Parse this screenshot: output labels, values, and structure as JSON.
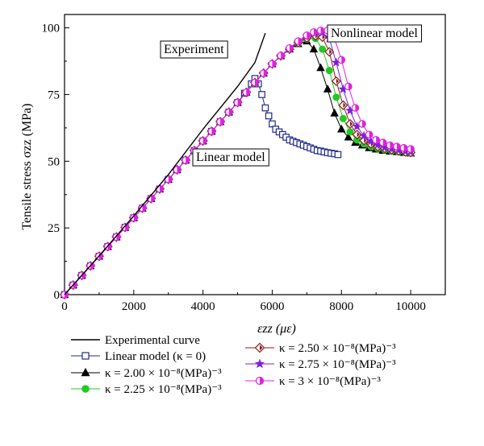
{
  "chart_data": {
    "type": "line",
    "xlabel": "εzz (με)",
    "ylabel": "Tensile stress σzz (MPa)",
    "xlim": [
      0,
      11000
    ],
    "ylim": [
      0,
      105
    ],
    "x_ticks": [
      "0",
      "2000",
      "4000",
      "6000",
      "8000",
      "10000"
    ],
    "y_ticks": [
      "0",
      "25",
      "50",
      "75",
      "100"
    ],
    "annotations": [
      "Experiment",
      "Linear model",
      "Nonlinear model"
    ],
    "series": [
      {
        "name": "Experimental curve",
        "marker": "none",
        "color": "#000000",
        "points": [
          [
            0,
            0
          ],
          [
            1000,
            14.5
          ],
          [
            2000,
            29.5
          ],
          [
            3000,
            45
          ],
          [
            4000,
            62
          ],
          [
            5000,
            78
          ],
          [
            5500,
            87
          ],
          [
            5800,
            98
          ]
        ]
      },
      {
        "name": "Linear model (κ = 0)",
        "marker": "square-open",
        "color": "#1f2a8a",
        "points": [
          [
            0,
            0
          ],
          [
            250,
            3.6
          ],
          [
            500,
            7.2
          ],
          [
            750,
            10.8
          ],
          [
            1000,
            14.4
          ],
          [
            1250,
            18
          ],
          [
            1500,
            21.6
          ],
          [
            1750,
            25.2
          ],
          [
            2000,
            28.8
          ],
          [
            2250,
            32.4
          ],
          [
            2500,
            36
          ],
          [
            2750,
            39.6
          ],
          [
            3000,
            43.2
          ],
          [
            3250,
            46.8
          ],
          [
            3500,
            50.4
          ],
          [
            3750,
            54
          ],
          [
            4000,
            57.6
          ],
          [
            4250,
            61.2
          ],
          [
            4500,
            64.8
          ],
          [
            4750,
            68.4
          ],
          [
            5000,
            72
          ],
          [
            5200,
            75.5
          ],
          [
            5400,
            79
          ],
          [
            5500,
            81
          ],
          [
            5600,
            79
          ],
          [
            5700,
            75
          ],
          [
            5800,
            70
          ],
          [
            5900,
            67
          ],
          [
            6000,
            64
          ],
          [
            6100,
            62
          ],
          [
            6200,
            61
          ],
          [
            6300,
            60
          ],
          [
            6400,
            59
          ],
          [
            6500,
            58
          ],
          [
            6600,
            57.5
          ],
          [
            6700,
            57
          ],
          [
            6800,
            56.5
          ],
          [
            6900,
            56
          ],
          [
            7000,
            55.5
          ],
          [
            7100,
            55
          ],
          [
            7200,
            54.5
          ],
          [
            7300,
            54
          ],
          [
            7400,
            53.8
          ],
          [
            7500,
            53.5
          ],
          [
            7600,
            53.2
          ],
          [
            7700,
            53
          ],
          [
            7800,
            52.8
          ],
          [
            7900,
            52.5
          ]
        ]
      },
      {
        "name": "κ = 2.00 × 10⁻⁸(MPa)⁻³",
        "marker": "triangle",
        "color": "#000000",
        "points": [
          [
            0,
            0
          ],
          [
            250,
            3.6
          ],
          [
            500,
            7.2
          ],
          [
            750,
            10.8
          ],
          [
            1000,
            14.4
          ],
          [
            1250,
            18
          ],
          [
            1500,
            21.6
          ],
          [
            1750,
            25.2
          ],
          [
            2000,
            28.8
          ],
          [
            2250,
            32.4
          ],
          [
            2500,
            36
          ],
          [
            2750,
            39.6
          ],
          [
            3000,
            43.2
          ],
          [
            3250,
            46.8
          ],
          [
            3500,
            50.4
          ],
          [
            3750,
            54
          ],
          [
            4000,
            57.6
          ],
          [
            4250,
            61.2
          ],
          [
            4500,
            64.8
          ],
          [
            4750,
            68.4
          ],
          [
            5000,
            72
          ],
          [
            5250,
            75.8
          ],
          [
            5500,
            79.5
          ],
          [
            5750,
            83
          ],
          [
            6000,
            86.5
          ],
          [
            6250,
            89.5
          ],
          [
            6500,
            92
          ],
          [
            6750,
            94
          ],
          [
            7000,
            95
          ],
          [
            7200,
            92
          ],
          [
            7400,
            85
          ],
          [
            7600,
            77
          ],
          [
            7800,
            68
          ],
          [
            8000,
            62
          ],
          [
            8200,
            59
          ],
          [
            8400,
            57
          ],
          [
            8600,
            56
          ],
          [
            8800,
            55
          ],
          [
            9000,
            54.5
          ],
          [
            9200,
            54
          ],
          [
            9400,
            53.7
          ],
          [
            9600,
            53.5
          ],
          [
            9800,
            53.2
          ],
          [
            10000,
            53
          ]
        ]
      },
      {
        "name": "κ = 2.25 × 10⁻⁸(MPa)⁻³",
        "marker": "circle-filled",
        "color": "#22c922",
        "points": [
          [
            0,
            0
          ],
          [
            250,
            3.6
          ],
          [
            500,
            7.2
          ],
          [
            750,
            10.8
          ],
          [
            1000,
            14.4
          ],
          [
            1250,
            18
          ],
          [
            1500,
            21.6
          ],
          [
            1750,
            25.2
          ],
          [
            2000,
            28.8
          ],
          [
            2250,
            32.4
          ],
          [
            2500,
            36
          ],
          [
            2750,
            39.6
          ],
          [
            3000,
            43.2
          ],
          [
            3250,
            46.8
          ],
          [
            3500,
            50.4
          ],
          [
            3750,
            54
          ],
          [
            4000,
            57.6
          ],
          [
            4250,
            61.2
          ],
          [
            4500,
            64.8
          ],
          [
            4750,
            68.4
          ],
          [
            5000,
            72
          ],
          [
            5250,
            75.8
          ],
          [
            5500,
            79.5
          ],
          [
            5750,
            83
          ],
          [
            6000,
            86.5
          ],
          [
            6250,
            89.5
          ],
          [
            6500,
            92
          ],
          [
            6750,
            94.2
          ],
          [
            7000,
            95.8
          ],
          [
            7250,
            96
          ],
          [
            7450,
            92
          ],
          [
            7650,
            84
          ],
          [
            7850,
            74
          ],
          [
            8050,
            66
          ],
          [
            8250,
            61
          ],
          [
            8450,
            58
          ],
          [
            8650,
            56.5
          ],
          [
            8850,
            55.5
          ],
          [
            9050,
            54.8
          ],
          [
            9250,
            54.2
          ],
          [
            9450,
            53.8
          ],
          [
            9650,
            53.5
          ],
          [
            9850,
            53.2
          ],
          [
            10000,
            53
          ]
        ]
      },
      {
        "name": "κ = 2.50 × 10⁻⁸(MPa)⁻³",
        "marker": "diamond-filled",
        "color": "#8b1a1a",
        "points": [
          [
            0,
            0
          ],
          [
            250,
            3.6
          ],
          [
            500,
            7.2
          ],
          [
            750,
            10.8
          ],
          [
            1000,
            14.4
          ],
          [
            1250,
            18
          ],
          [
            1500,
            21.6
          ],
          [
            1750,
            25.2
          ],
          [
            2000,
            28.8
          ],
          [
            2250,
            32.4
          ],
          [
            2500,
            36
          ],
          [
            2750,
            39.6
          ],
          [
            3000,
            43.2
          ],
          [
            3250,
            46.8
          ],
          [
            3500,
            50.4
          ],
          [
            3750,
            54
          ],
          [
            4000,
            57.6
          ],
          [
            4250,
            61.2
          ],
          [
            4500,
            64.8
          ],
          [
            4750,
            68.4
          ],
          [
            5000,
            72
          ],
          [
            5250,
            75.8
          ],
          [
            5500,
            79.5
          ],
          [
            5750,
            83
          ],
          [
            6000,
            86.5
          ],
          [
            6250,
            89.5
          ],
          [
            6500,
            92
          ],
          [
            6750,
            94.5
          ],
          [
            7000,
            96.2
          ],
          [
            7250,
            97
          ],
          [
            7450,
            96.5
          ],
          [
            7650,
            91
          ],
          [
            7850,
            80
          ],
          [
            8050,
            71
          ],
          [
            8250,
            64
          ],
          [
            8450,
            60
          ],
          [
            8650,
            57.8
          ],
          [
            8850,
            56.5
          ],
          [
            9050,
            55.5
          ],
          [
            9250,
            54.8
          ],
          [
            9450,
            54.3
          ],
          [
            9650,
            53.9
          ],
          [
            9850,
            53.5
          ],
          [
            10000,
            53.3
          ]
        ]
      },
      {
        "name": "κ = 2.75 × 10⁻⁸(MPa)⁻³",
        "marker": "star",
        "color": "#7a22d6",
        "points": [
          [
            0,
            0
          ],
          [
            250,
            3.6
          ],
          [
            500,
            7.2
          ],
          [
            750,
            10.8
          ],
          [
            1000,
            14.4
          ],
          [
            1250,
            18
          ],
          [
            1500,
            21.6
          ],
          [
            1750,
            25.2
          ],
          [
            2000,
            28.8
          ],
          [
            2250,
            32.4
          ],
          [
            2500,
            36
          ],
          [
            2750,
            39.6
          ],
          [
            3000,
            43.2
          ],
          [
            3250,
            46.8
          ],
          [
            3500,
            50.4
          ],
          [
            3750,
            54
          ],
          [
            4000,
            57.6
          ],
          [
            4250,
            61.2
          ],
          [
            4500,
            64.8
          ],
          [
            4750,
            68.4
          ],
          [
            5000,
            72
          ],
          [
            5250,
            75.8
          ],
          [
            5500,
            79.5
          ],
          [
            5750,
            83
          ],
          [
            6000,
            86.5
          ],
          [
            6250,
            89.5
          ],
          [
            6500,
            92.2
          ],
          [
            6750,
            94.8
          ],
          [
            7000,
            96.8
          ],
          [
            7250,
            98
          ],
          [
            7450,
            98.2
          ],
          [
            7650,
            96
          ],
          [
            7850,
            87
          ],
          [
            8050,
            77
          ],
          [
            8250,
            69
          ],
          [
            8450,
            63
          ],
          [
            8650,
            59.5
          ],
          [
            8850,
            57.5
          ],
          [
            9050,
            56.2
          ],
          [
            9250,
            55.2
          ],
          [
            9450,
            54.6
          ],
          [
            9650,
            54.2
          ],
          [
            9850,
            53.8
          ],
          [
            10000,
            53.6
          ]
        ]
      },
      {
        "name": "κ = 3 × 10⁻⁸(MPa)⁻³",
        "marker": "circle-half",
        "color": "#e020e0",
        "points": [
          [
            0,
            0
          ],
          [
            250,
            3.6
          ],
          [
            500,
            7.2
          ],
          [
            750,
            10.8
          ],
          [
            1000,
            14.4
          ],
          [
            1250,
            18
          ],
          [
            1500,
            21.6
          ],
          [
            1750,
            25.2
          ],
          [
            2000,
            28.8
          ],
          [
            2250,
            32.4
          ],
          [
            2500,
            36
          ],
          [
            2750,
            39.6
          ],
          [
            3000,
            43.2
          ],
          [
            3250,
            46.8
          ],
          [
            3500,
            50.4
          ],
          [
            3750,
            54
          ],
          [
            4000,
            57.6
          ],
          [
            4250,
            61.2
          ],
          [
            4500,
            64.8
          ],
          [
            4750,
            68.4
          ],
          [
            5000,
            72
          ],
          [
            5250,
            75.8
          ],
          [
            5500,
            79.5
          ],
          [
            5750,
            83
          ],
          [
            6000,
            86.5
          ],
          [
            6250,
            89.6
          ],
          [
            6500,
            92.4
          ],
          [
            6750,
            95
          ],
          [
            7000,
            97.2
          ],
          [
            7200,
            98.4
          ],
          [
            7400,
            99
          ],
          [
            7600,
            99
          ],
          [
            7800,
            96
          ],
          [
            8000,
            88
          ],
          [
            8200,
            78
          ],
          [
            8400,
            70
          ],
          [
            8600,
            64
          ],
          [
            8800,
            60
          ],
          [
            9000,
            58
          ],
          [
            9200,
            57
          ],
          [
            9400,
            56
          ],
          [
            9600,
            55.5
          ],
          [
            9800,
            55
          ],
          [
            10000,
            54.6
          ]
        ]
      }
    ]
  }
}
